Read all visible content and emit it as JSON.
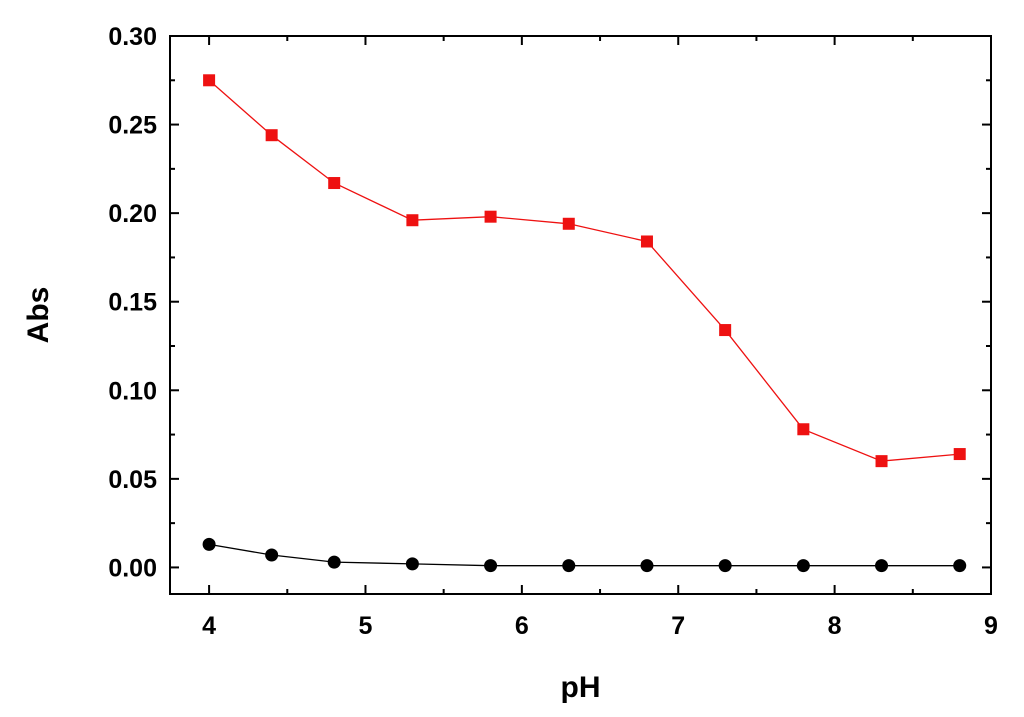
{
  "chart_data": {
    "type": "line",
    "title": "",
    "xlabel": "pH",
    "ylabel": "Abs",
    "xlim": [
      3.75,
      9
    ],
    "ylim": [
      -0.015,
      0.3
    ],
    "x_ticks": [
      4,
      5,
      6,
      7,
      8,
      9
    ],
    "x_tick_labels": [
      "4",
      "5",
      "6",
      "7",
      "8",
      "9"
    ],
    "y_ticks": [
      0.0,
      0.05,
      0.1,
      0.15,
      0.2,
      0.25,
      0.3
    ],
    "y_tick_labels": [
      "0.00",
      "0.05",
      "0.10",
      "0.15",
      "0.20",
      "0.25",
      "0.30"
    ],
    "grid": false,
    "legend": "none",
    "series": [
      {
        "marker": "square",
        "color": "#ee1111",
        "x": [
          4.0,
          4.4,
          4.8,
          5.3,
          5.8,
          6.3,
          6.8,
          7.3,
          7.8,
          8.3,
          8.8
        ],
        "y": [
          0.275,
          0.244,
          0.217,
          0.196,
          0.198,
          0.194,
          0.184,
          0.134,
          0.078,
          0.06,
          0.064
        ]
      },
      {
        "marker": "circle",
        "color": "#000000",
        "x": [
          4.0,
          4.4,
          4.8,
          5.3,
          5.8,
          6.3,
          6.8,
          7.3,
          7.8,
          8.3,
          8.8
        ],
        "y": [
          0.013,
          0.007,
          0.003,
          0.002,
          0.001,
          0.001,
          0.001,
          0.001,
          0.001,
          0.001,
          0.001
        ]
      }
    ]
  }
}
